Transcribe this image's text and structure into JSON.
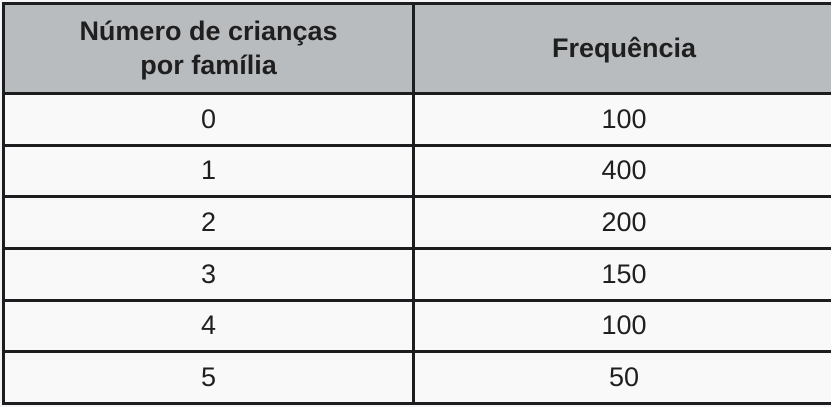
{
  "colors": {
    "header_bg": "#b9bcbf",
    "cell_bg": "#f9f9f9",
    "border": "#1d1d1f",
    "text": "#1f1f1f",
    "page_bg": "#f4f4f6"
  },
  "table": {
    "col1_header": "Número de crianças\npor família",
    "col2_header": "Frequência",
    "rows": [
      [
        "0",
        "100"
      ],
      [
        "1",
        "400"
      ],
      [
        "2",
        "200"
      ],
      [
        "3",
        "150"
      ],
      [
        "4",
        "100"
      ],
      [
        "5",
        "50"
      ]
    ]
  },
  "chart_data": {
    "type": "table",
    "title": "",
    "columns": [
      "Número de crianças por família",
      "Frequência"
    ],
    "categories": [
      0,
      1,
      2,
      3,
      4,
      5
    ],
    "values": [
      100,
      400,
      200,
      150,
      100,
      50
    ],
    "xlabel": "Número de crianças por família",
    "ylabel": "Frequência",
    "layout": "bordered frequency table, gray header row, centered cells"
  }
}
